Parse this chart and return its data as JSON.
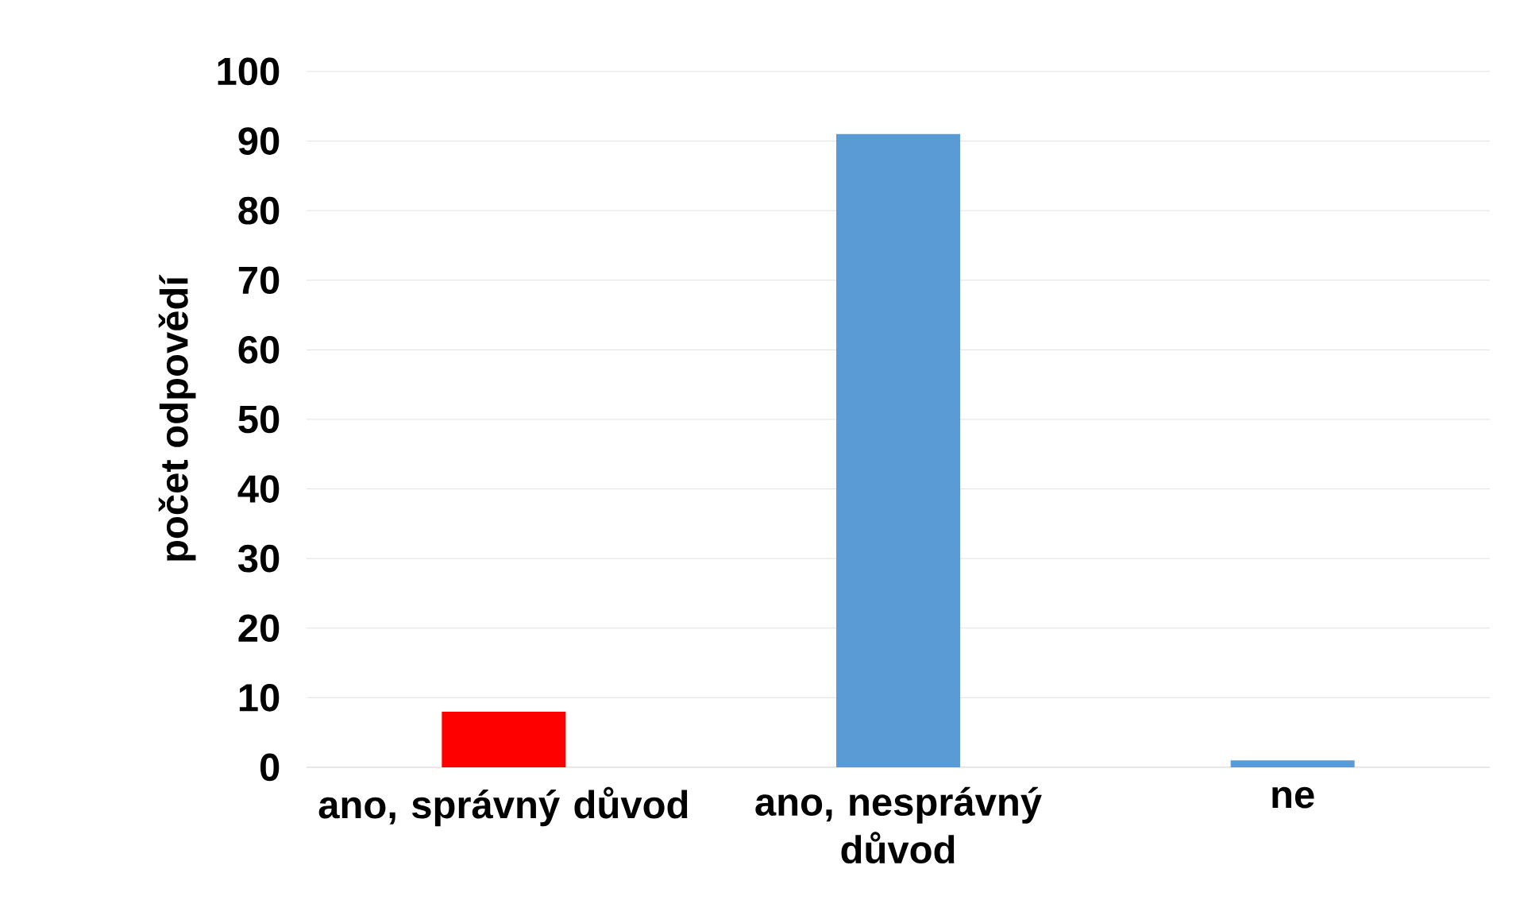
{
  "chart_data": {
    "type": "bar",
    "ylabel": "počet odpovědí",
    "categories": [
      "ano, správný důvod",
      "ano, nesprávný důvod",
      "ne"
    ],
    "values": [
      8,
      91,
      1
    ],
    "colors": [
      "#ff0000",
      "#5b9bd5",
      "#5b9bd5"
    ],
    "ylim": [
      0,
      100
    ],
    "yticks": [
      0,
      10,
      20,
      30,
      40,
      50,
      60,
      70,
      80,
      90,
      100
    ],
    "grid": "y"
  }
}
